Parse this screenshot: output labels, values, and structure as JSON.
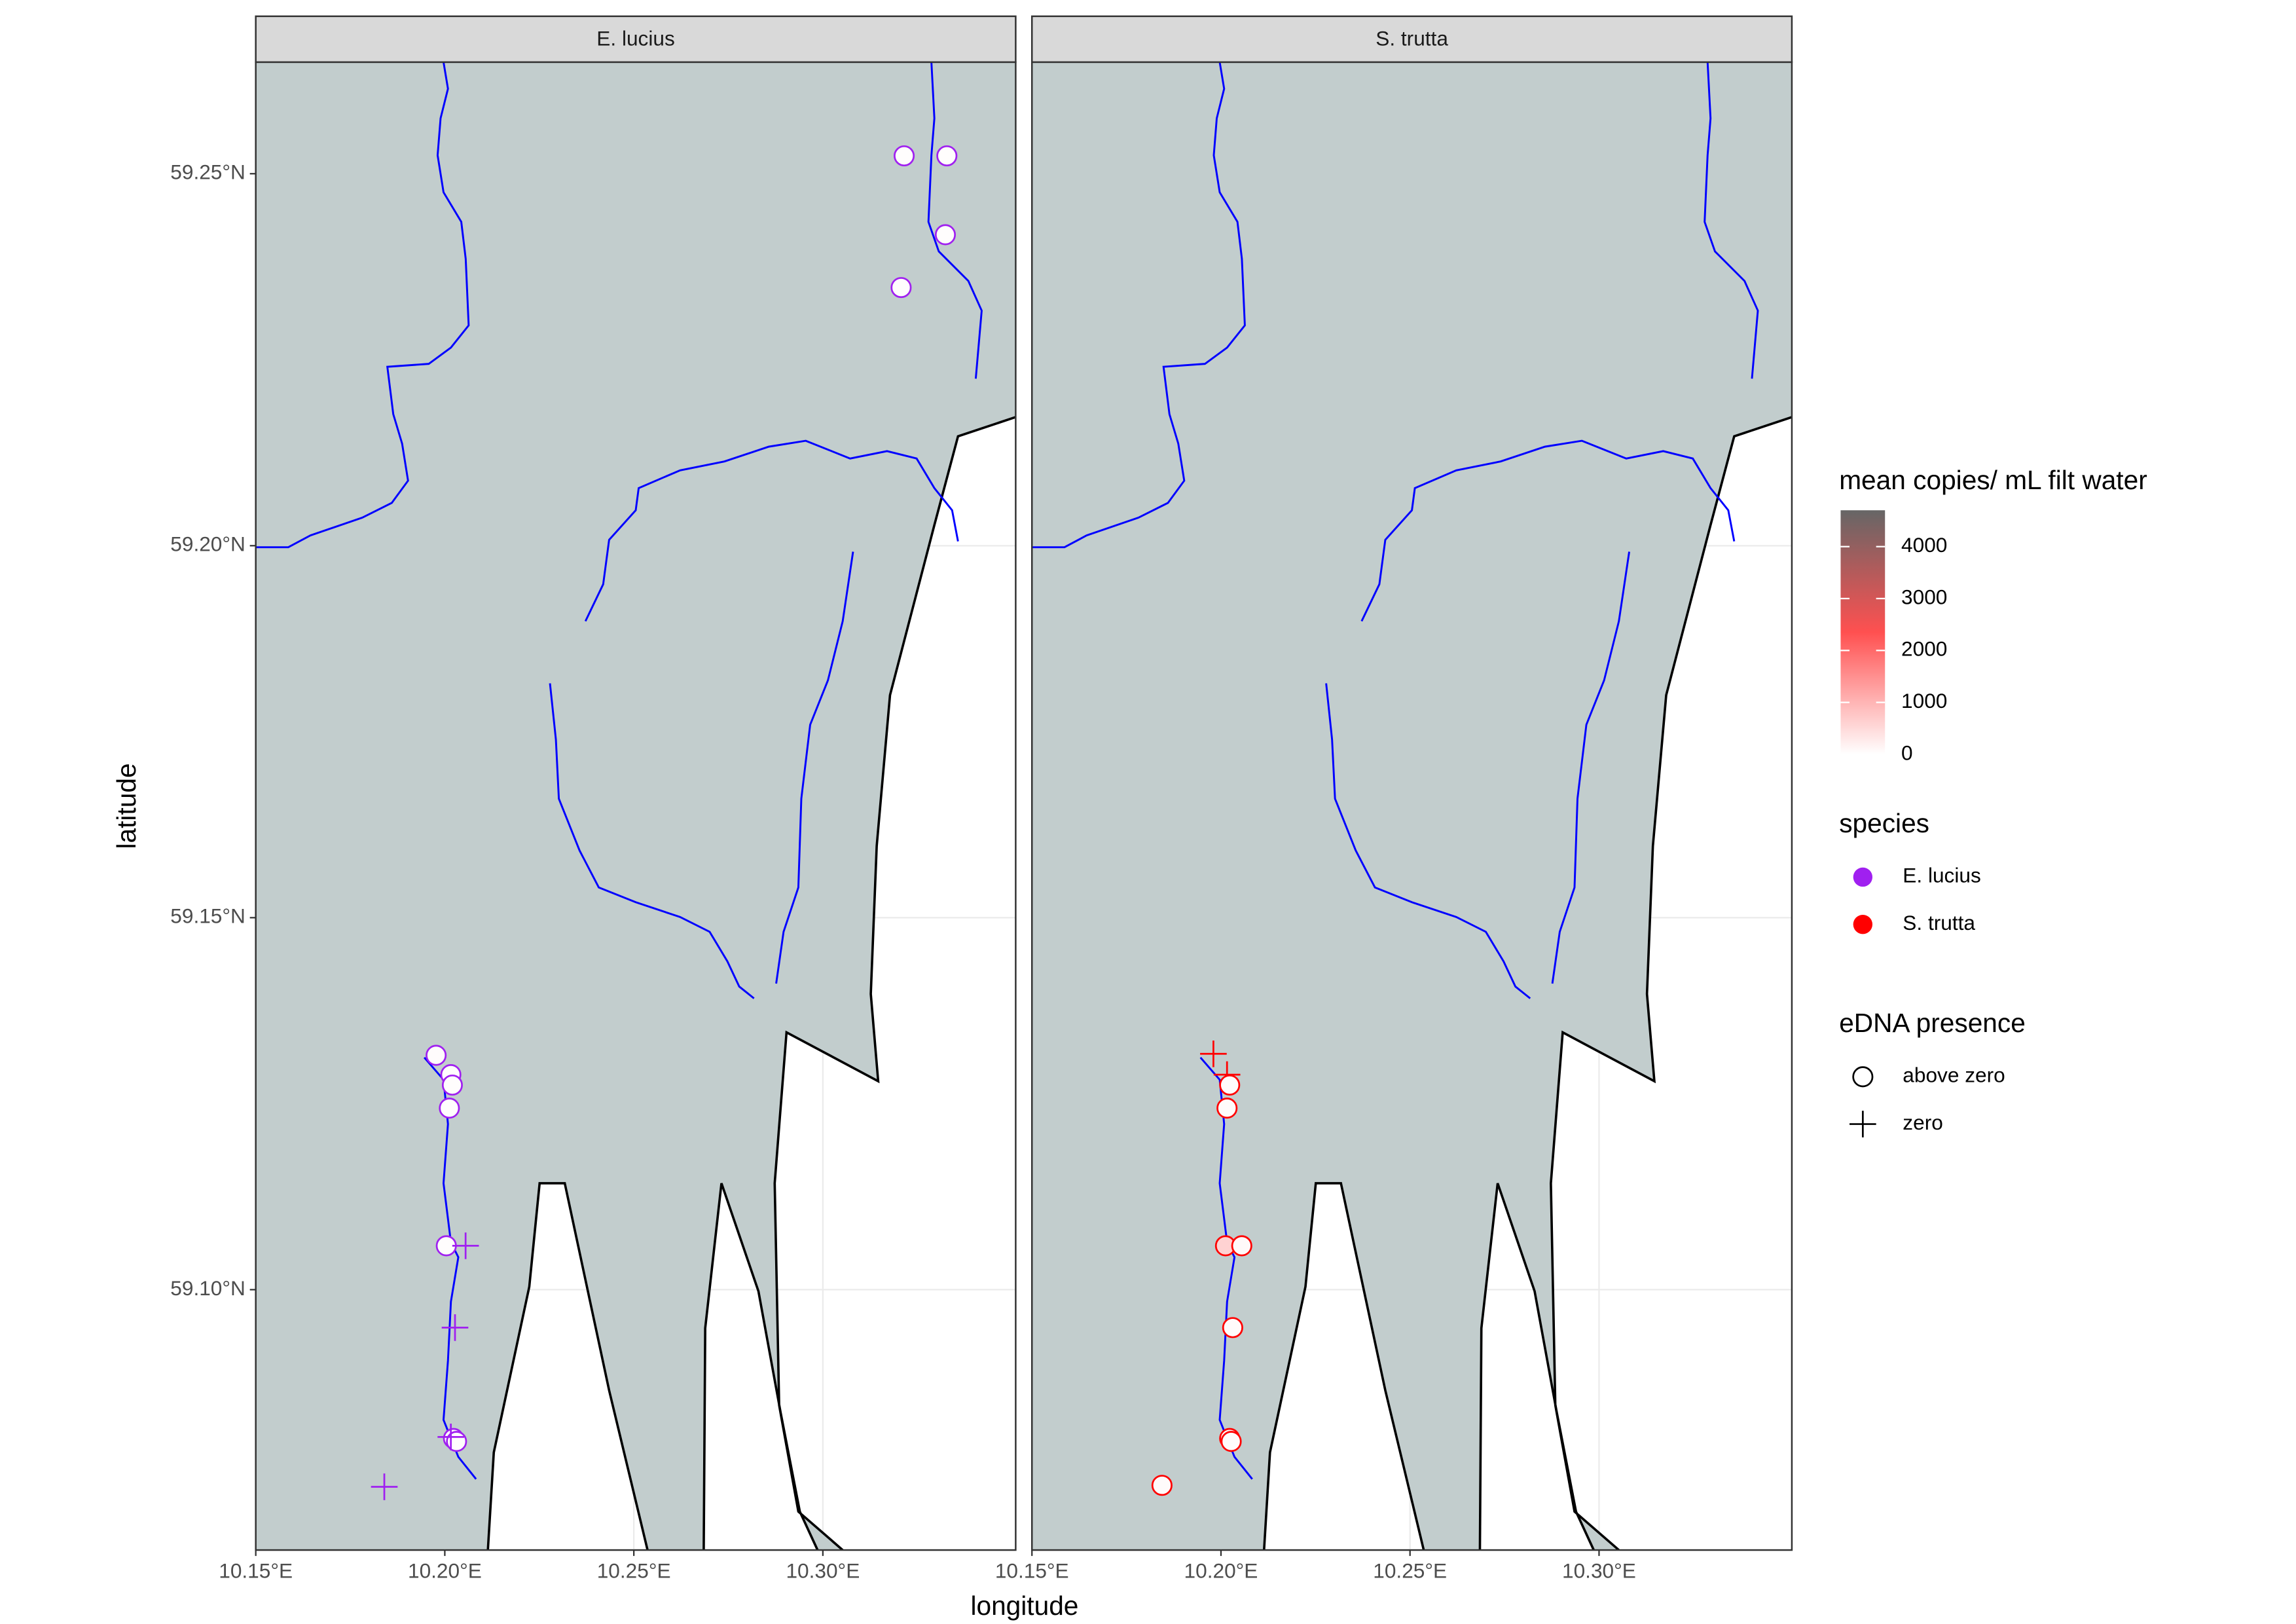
{
  "axes": {
    "xlabel": "longitude",
    "ylabel": "latitude"
  },
  "chart_data": [
    {
      "type": "scatter",
      "title": "E. lucius",
      "xlim": [
        10.15,
        10.351
      ],
      "ylim": [
        59.065,
        59.265
      ],
      "xticks": [
        {
          "value": 10.15,
          "label": "10.15°E"
        },
        {
          "value": 10.2,
          "label": "10.20°E"
        },
        {
          "value": 10.25,
          "label": "10.25°E"
        },
        {
          "value": 10.3,
          "label": "10.30°E"
        }
      ],
      "yticks": [
        {
          "value": 59.1,
          "label": "59.10°N"
        },
        {
          "value": 59.15,
          "label": "59.15°N"
        },
        {
          "value": 59.2,
          "label": "59.20°N"
        },
        {
          "value": 59.25,
          "label": "59.25°N"
        }
      ],
      "x": [
        10.3215,
        10.3328,
        10.3324,
        10.3207,
        10.1977,
        10.2016,
        10.202,
        10.2012,
        10.2004,
        10.2023,
        10.2031,
        10.2055,
        10.2027,
        10.2016,
        10.184
      ],
      "y": [
        59.2524,
        59.2524,
        59.2418,
        59.2347,
        59.1315,
        59.1289,
        59.1275,
        59.1244,
        59.1059,
        59.08,
        59.0796,
        59.1059,
        59.0949,
        59.0802,
        59.0735
      ],
      "presence": [
        "above zero",
        "above zero",
        "above zero",
        "above zero",
        "above zero",
        "above zero",
        "above zero",
        "above zero",
        "above zero",
        "above zero",
        "above zero",
        "zero",
        "zero",
        "zero",
        "zero"
      ],
      "copies": [
        30,
        30,
        30,
        30,
        40,
        30,
        30,
        30,
        30,
        30,
        30,
        0,
        0,
        0,
        0
      ]
    },
    {
      "type": "scatter",
      "title": "S. trutta",
      "xlim": [
        10.15,
        10.351
      ],
      "xticks": [
        {
          "value": 10.15,
          "label": "10.15°E"
        },
        {
          "value": 10.2,
          "label": "10.20°E"
        },
        {
          "value": 10.25,
          "label": "10.25°E"
        },
        {
          "value": 10.3,
          "label": "10.30°E"
        }
      ],
      "x": [
        10.198,
        10.2016,
        10.2023,
        10.2016,
        10.2012,
        10.2055,
        10.2031,
        10.2023,
        10.2027,
        10.1844
      ],
      "y": [
        59.1317,
        59.1289,
        59.1275,
        59.1244,
        59.1059,
        59.1059,
        59.0949,
        59.08,
        59.0796,
        59.0737
      ],
      "presence": [
        "zero",
        "zero",
        "above zero",
        "above zero",
        "above zero",
        "above zero",
        "above zero",
        "above zero",
        "above zero",
        "above zero"
      ],
      "copies": [
        0,
        0,
        60,
        60,
        600,
        80,
        60,
        60,
        60,
        60
      ]
    }
  ],
  "legend": {
    "fill": {
      "title": "mean copies/ mL filt water",
      "lim": [
        0,
        4700
      ],
      "ticks": [
        0,
        1000,
        2000,
        3000,
        4000
      ],
      "colors": [
        "#ffffff",
        "#ff5050",
        "#666666"
      ]
    },
    "species": {
      "title": "species",
      "entries": [
        {
          "name": "E. lucius",
          "color": "#a020f0"
        },
        {
          "name": "S. trutta",
          "color": "#ff0000"
        }
      ]
    },
    "presence": {
      "title": "eDNA presence",
      "entries": [
        "above zero",
        "zero"
      ]
    }
  }
}
